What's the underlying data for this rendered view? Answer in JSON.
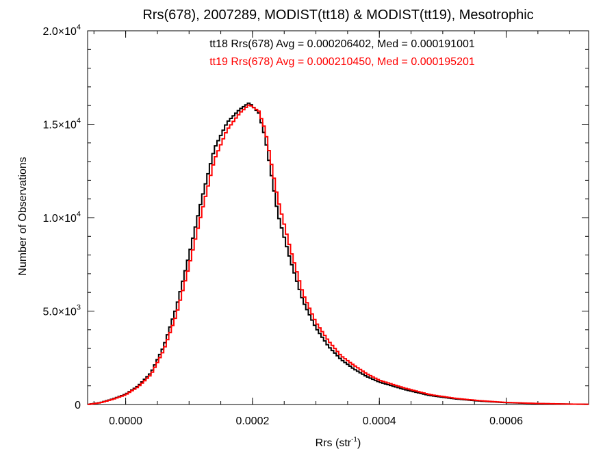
{
  "chart_data": {
    "type": "histogram-step",
    "title": "Rrs(678), 2007289, MODIST(tt18) & MODIST(tt19), Mesotrophic",
    "xlabel": "Rrs (str",
    "xlabel_sup": "-1",
    "xlabel_close": ")",
    "ylabel": "Number of Observations",
    "xlim": [
      -6e-05,
      0.00073
    ],
    "ylim": [
      0,
      20000
    ],
    "grid": false,
    "x_ticks": [
      0.0,
      0.0002,
      0.0004,
      0.0006
    ],
    "x_tick_labels": [
      "0.0000",
      "0.0002",
      "0.0004",
      "0.0006"
    ],
    "y_ticks": [
      0,
      5000,
      10000,
      15000,
      20000
    ],
    "y_tick_labels": [
      {
        "mant": "0",
        "exp": ""
      },
      {
        "mant": "5.0×10",
        "exp": "3"
      },
      {
        "mant": "1.0×10",
        "exp": "4"
      },
      {
        "mant": "1.5×10",
        "exp": "4"
      },
      {
        "mant": "2.0×10",
        "exp": "4"
      }
    ],
    "legend": [
      {
        "text": "tt18 Rrs(678) Avg = 0.000206402, Med = 0.000191001",
        "color": "#000000"
      },
      {
        "text": "tt19 Rrs(678) Avg = 0.000210450, Med = 0.000195201",
        "color": "#ff0000"
      }
    ],
    "bin_width": 4e-06,
    "series": [
      {
        "name": "tt18",
        "color": "#000000",
        "x": [
          -6e-05,
          -4e-05,
          -2e-05,
          0.0,
          2e-05,
          4e-05,
          6e-05,
          8e-05,
          0.0001,
          0.00012,
          0.00014,
          0.00016,
          0.00018,
          0.000195,
          0.00021,
          0.00022,
          0.00024,
          0.00026,
          0.00028,
          0.0003,
          0.00032,
          0.00034,
          0.00036,
          0.00038,
          0.0004,
          0.00044,
          0.00048,
          0.00052,
          0.00056,
          0.0006,
          0.00065,
          0.0007,
          0.00073
        ],
        "y": [
          0,
          100,
          300,
          550,
          1000,
          1700,
          3100,
          5200,
          8000,
          11000,
          13700,
          15100,
          15800,
          16150,
          15600,
          14300,
          10200,
          7700,
          5500,
          4100,
          3100,
          2400,
          1900,
          1500,
          1200,
          800,
          480,
          300,
          180,
          100,
          50,
          20,
          10
        ]
      },
      {
        "name": "tt19",
        "color": "#ff0000",
        "x": [
          -6e-05,
          -4e-05,
          -2e-05,
          0.0,
          2e-05,
          4e-05,
          6e-05,
          8e-05,
          0.0001,
          0.00012,
          0.00014,
          0.00016,
          0.00018,
          0.000195,
          0.00021,
          0.00022,
          0.00024,
          0.00026,
          0.00028,
          0.0003,
          0.00032,
          0.00034,
          0.00036,
          0.00038,
          0.0004,
          0.00044,
          0.00048,
          0.00052,
          0.00056,
          0.0006,
          0.00065,
          0.0007,
          0.00073
        ],
        "y": [
          0,
          90,
          280,
          520,
          950,
          1600,
          2900,
          4800,
          7400,
          10300,
          13100,
          14700,
          15600,
          16050,
          15700,
          14700,
          11000,
          8300,
          5900,
          4400,
          3400,
          2600,
          2100,
          1650,
          1300,
          880,
          530,
          330,
          200,
          110,
          55,
          22,
          12
        ]
      }
    ]
  }
}
